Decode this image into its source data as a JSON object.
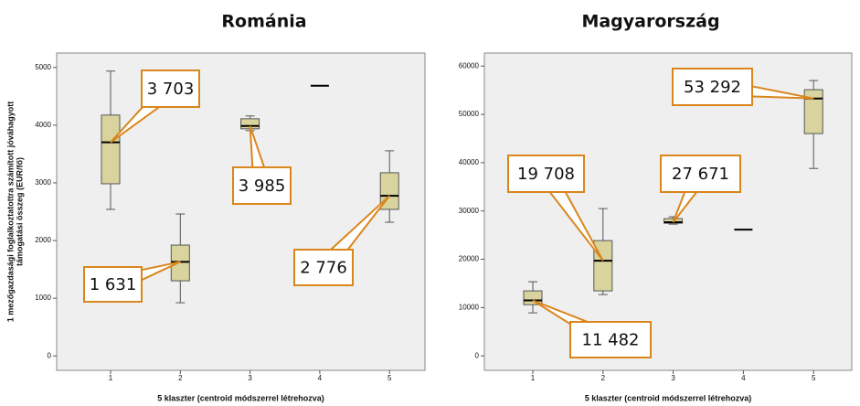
{
  "chart_data": [
    {
      "type": "box",
      "title": "Románia",
      "xlabel": "5 klaszter (centroid módszerrel létrehozva)",
      "ylabel": [
        "1 mezőgazdasági foglalkoztatottra számított jóváhagyott",
        "támogatási összeg (EUR/fő)"
      ],
      "categories": [
        "1",
        "2",
        "3",
        "4",
        "5"
      ],
      "whisker_low": [
        2540,
        921,
        3905,
        4683,
        2317
      ],
      "q1": [
        2984,
        1302,
        3937,
        4683,
        2540
      ],
      "median": [
        3703,
        1631,
        3985,
        4683,
        2776
      ],
      "q3": [
        4175,
        1921,
        4111,
        4683,
        3175
      ],
      "whisker_high": [
        4937,
        2460,
        4159,
        4683,
        3556
      ],
      "value_labels": [
        "3 703",
        "1 631",
        "3 985",
        null,
        "2 776"
      ],
      "color": "#d9d49d",
      "ylim": [
        -250,
        5250
      ],
      "yticks": [
        0,
        1000,
        2000,
        3000,
        4000,
        5000
      ]
    },
    {
      "type": "box",
      "title": "Magyarország",
      "xlabel": "5 klaszter (centroid módszerrel létrehozva)",
      "categories": [
        "1",
        "2",
        "3",
        "4",
        "5"
      ],
      "whisker_low": [
        8900,
        12690,
        27270,
        26140,
        38800
      ],
      "q1": [
        10600,
        13450,
        27460,
        26140,
        46020
      ],
      "median": [
        11482,
        19708,
        27671,
        26140,
        53292
      ],
      "q3": [
        13450,
        23860,
        28410,
        26140,
        55110
      ],
      "whisker_high": [
        15340,
        30500,
        28790,
        26140,
        57010
      ],
      "value_labels": [
        "11 482",
        "19 708",
        "27 671",
        null,
        "53 292"
      ],
      "color": "#d9d49d",
      "ylim": [
        -3000,
        62700
      ],
      "yticks": [
        0,
        10000,
        20000,
        30000,
        40000,
        50000,
        60000
      ]
    }
  ]
}
